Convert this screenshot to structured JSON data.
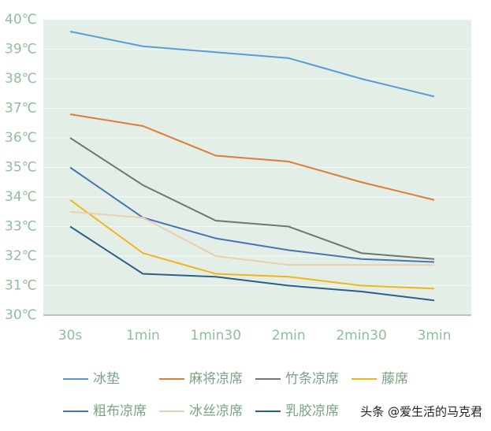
{
  "chart_data": {
    "type": "line",
    "categories": [
      "30s",
      "1min",
      "1min30",
      "2min",
      "2min30",
      "3min"
    ],
    "ylim": [
      30,
      40
    ],
    "yticks": [
      {
        "value": 30,
        "label": "30℃"
      },
      {
        "value": 31,
        "label": "31℃"
      },
      {
        "value": 32,
        "label": "32℃"
      },
      {
        "value": 33,
        "label": "33℃"
      },
      {
        "value": 34,
        "label": "34℃"
      },
      {
        "value": 35,
        "label": "35℃"
      },
      {
        "value": 36,
        "label": "36℃"
      },
      {
        "value": 37,
        "label": "37℃"
      },
      {
        "value": 38,
        "label": "38℃"
      },
      {
        "value": 39,
        "label": "39℃"
      },
      {
        "value": 40,
        "label": "40℃"
      }
    ],
    "grid": true,
    "series": [
      {
        "name": "冰垫",
        "color": "#5b9bd5",
        "values": [
          39.6,
          39.1,
          38.9,
          38.7,
          38.0,
          37.4
        ]
      },
      {
        "name": "麻将凉席",
        "color": "#e07b39",
        "values": [
          36.8,
          36.4,
          35.4,
          35.2,
          34.5,
          33.9
        ]
      },
      {
        "name": "竹条凉席",
        "color": "#6d7872",
        "values": [
          36.0,
          34.4,
          33.2,
          33.0,
          32.1,
          31.9
        ]
      },
      {
        "name": "藤席",
        "color": "#f0b51d",
        "values": [
          33.9,
          32.1,
          31.4,
          31.3,
          31.0,
          30.9
        ]
      },
      {
        "name": "粗布凉席",
        "color": "#4a72b8",
        "values": [
          35.0,
          33.3,
          32.6,
          32.2,
          31.9,
          31.8
        ]
      },
      {
        "name": "冰丝凉席",
        "color": "#e8cfae",
        "values": [
          33.5,
          33.3,
          32.0,
          31.7,
          31.7,
          31.7
        ]
      },
      {
        "name": "乳胶凉席",
        "color": "#2c5f8a",
        "values": [
          33.0,
          31.4,
          31.3,
          31.0,
          30.8,
          30.5
        ]
      }
    ],
    "watermark": "头条 @爱生活的马克君"
  }
}
